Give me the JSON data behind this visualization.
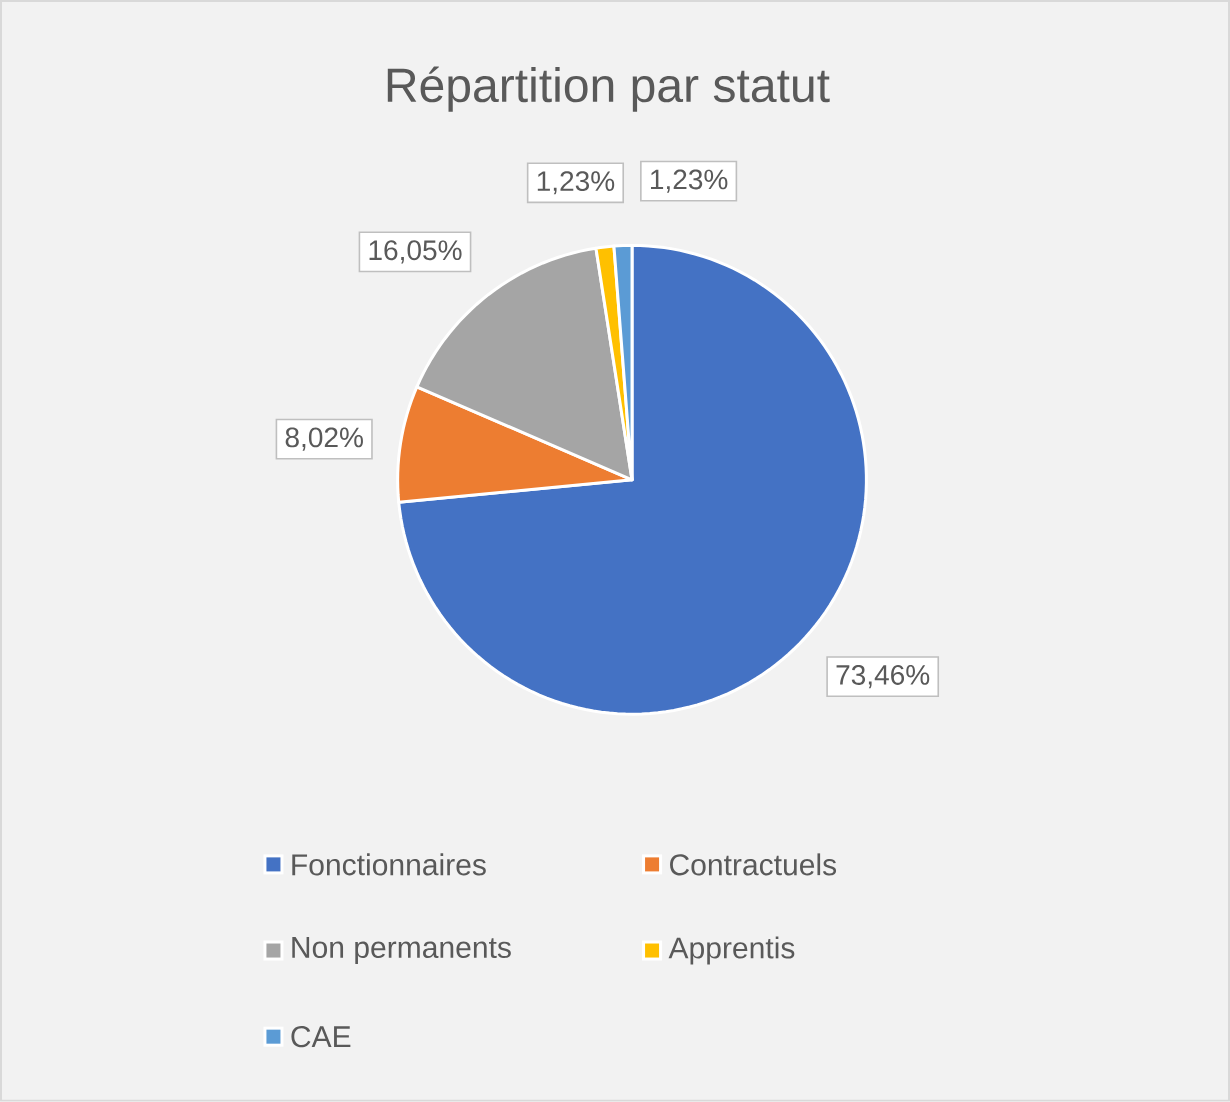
{
  "chart_data": {
    "type": "pie",
    "title": "Répartition par statut",
    "categories": [
      "Fonctionnaires",
      "Contractuels",
      "Non permanents",
      "Apprentis",
      "CAE"
    ],
    "values": [
      73.46,
      8.02,
      16.05,
      1.23,
      1.23
    ],
    "colors": [
      "#4472c4",
      "#ed7d31",
      "#a5a5a5",
      "#ffc000",
      "#5b9bd5"
    ],
    "value_labels": [
      "73,46%",
      "8,02%",
      "16,05%",
      "1,23%",
      "1,23%"
    ],
    "legend": "bottom"
  }
}
